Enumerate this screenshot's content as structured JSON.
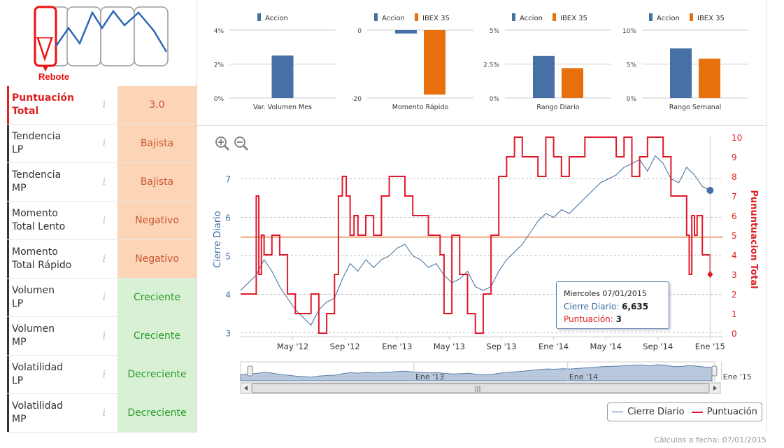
{
  "logo": {
    "caption": "Rebote"
  },
  "scores": [
    {
      "label1": "Puntuación",
      "label2": "Total",
      "info": "i",
      "value": "3.0",
      "tone": "orange",
      "main": true
    },
    {
      "label1": "Tendencia",
      "label2": "LP",
      "info": "i",
      "value": "Bajista",
      "tone": "orange"
    },
    {
      "label1": "Tendencia",
      "label2": "MP",
      "info": "i",
      "value": "Bajista",
      "tone": "orange"
    },
    {
      "label1": "Momento",
      "label2": "Total Lento",
      "info": "i",
      "value": "Negativo",
      "tone": "orange"
    },
    {
      "label1": "Momento",
      "label2": "Total Rápido",
      "info": "i",
      "value": "Negativo",
      "tone": "orange"
    },
    {
      "label1": "Volumen",
      "label2": "LP",
      "info": "i",
      "value": "Creciente",
      "tone": "green"
    },
    {
      "label1": "Volumen",
      "label2": "MP",
      "info": "i",
      "value": "Creciente",
      "tone": "green"
    },
    {
      "label1": "Volatilidad",
      "label2": "LP",
      "info": "i",
      "value": "Decreciente",
      "tone": "green"
    },
    {
      "label1": "Volatilidad",
      "label2": "MP",
      "info": "i",
      "value": "Decreciente",
      "tone": "green"
    }
  ],
  "colors": {
    "accion": "#4670a6",
    "ibex": "#e8700c",
    "puntuacion": "#e0192a",
    "cierre": "#3f6c9e"
  },
  "chart_data": [
    {
      "type": "bar",
      "title": "Var. Volumen Mes",
      "categories": [
        "Var. Volumen Mes"
      ],
      "series": [
        {
          "name": "Accion",
          "values": [
            2.5
          ]
        }
      ],
      "ylim": [
        0,
        4
      ],
      "ticks": [
        "0%",
        "2%",
        "4%"
      ]
    },
    {
      "type": "bar",
      "title": "Momento Rápido",
      "categories": [
        "Momento Rápido"
      ],
      "series": [
        {
          "name": "Accion",
          "values": [
            -1
          ]
        },
        {
          "name": "IBEX 35",
          "values": [
            -19
          ]
        }
      ],
      "ylim": [
        -20,
        0
      ],
      "ticks": [
        "-20",
        "0"
      ]
    },
    {
      "type": "bar",
      "title": "Rango Diario",
      "categories": [
        "Rango Diario"
      ],
      "series": [
        {
          "name": "Accion",
          "values": [
            3.1
          ]
        },
        {
          "name": "IBEX 35",
          "values": [
            2.2
          ]
        }
      ],
      "ylim": [
        0,
        5
      ],
      "ticks": [
        "0%",
        "2.5%",
        "5%"
      ]
    },
    {
      "type": "bar",
      "title": "Rango Semanal",
      "categories": [
        "Rango Semanal"
      ],
      "series": [
        {
          "name": "Accion",
          "values": [
            7.3
          ]
        },
        {
          "name": "IBEX 35",
          "values": [
            5.8
          ]
        }
      ],
      "ylim": [
        0,
        10
      ],
      "ticks": [
        "0%",
        "5%",
        "10%"
      ]
    },
    {
      "type": "line",
      "ylabel_left": "Cierre Diario",
      "ylabel_right": "Pununtuacion Total",
      "ylim_left": [
        2.9,
        8.1
      ],
      "ylim_right": [
        0,
        10
      ],
      "yticks_left": [
        "3",
        "4",
        "5",
        "6",
        "7"
      ],
      "yticks_right": [
        "0",
        "1",
        "2",
        "3",
        "4",
        "5",
        "6",
        "7",
        "8",
        "9",
        "10"
      ],
      "xticks": [
        "May '12",
        "Sep '12",
        "Ene '13",
        "May '13",
        "Sep '13",
        "Ene '14",
        "May '14",
        "Sep '14",
        "Ene '15"
      ],
      "xrange": [
        0,
        37
      ],
      "xtick_positions": [
        4,
        8,
        12,
        16,
        20,
        24,
        28,
        32,
        36
      ],
      "reference_line_right": 4.9,
      "series": [
        {
          "name": "Cierre Diario",
          "axis": "left",
          "x": [
            0,
            0.6,
            1.2,
            1.8,
            2.4,
            3,
            3.6,
            4.2,
            4.8,
            5.4,
            6,
            6.6,
            7.2,
            7.8,
            8.4,
            9,
            9.6,
            10.2,
            10.8,
            11.4,
            12,
            12.6,
            13.2,
            13.8,
            14.4,
            15,
            15.6,
            16.2,
            16.8,
            17.4,
            18,
            18.6,
            19.2,
            19.8,
            20.4,
            21,
            21.6,
            22.2,
            22.8,
            23.4,
            24,
            24.6,
            25.2,
            25.8,
            26.4,
            27,
            27.6,
            28.2,
            28.8,
            29.4,
            30,
            30.6,
            31.2,
            31.8,
            32.4,
            33,
            33.6,
            34.2,
            34.8,
            35.4,
            36
          ],
          "values": [
            4.1,
            4.3,
            4.5,
            4.9,
            4.6,
            4.2,
            3.9,
            3.6,
            3.4,
            3.2,
            3.6,
            3.8,
            3.9,
            4.4,
            4.8,
            4.6,
            4.9,
            4.7,
            4.9,
            5.0,
            5.2,
            5.3,
            5.0,
            4.9,
            4.7,
            4.8,
            4.5,
            4.3,
            4.4,
            4.6,
            4.2,
            4.1,
            4.2,
            4.6,
            4.9,
            5.1,
            5.3,
            5.6,
            5.9,
            6.1,
            6.0,
            6.2,
            6.1,
            6.3,
            6.5,
            6.7,
            6.9,
            7.0,
            7.1,
            7.3,
            7.4,
            7.5,
            7.2,
            7.6,
            7.4,
            7.0,
            6.9,
            7.3,
            7.1,
            6.8,
            6.7
          ]
        },
        {
          "name": "Puntuación",
          "axis": "right",
          "x": [
            0,
            1,
            1.2,
            1.4,
            1.6,
            1.8,
            2,
            2.4,
            3,
            3.6,
            4.2,
            4.8,
            5.4,
            6,
            6.6,
            7.2,
            7.5,
            7.8,
            8.1,
            8.4,
            8.7,
            9,
            9.6,
            10.2,
            10.8,
            11.4,
            12,
            12.6,
            13.2,
            13.8,
            14.4,
            15,
            15.3,
            15.6,
            16.2,
            16.8,
            17.4,
            18,
            18.6,
            19.2,
            19.8,
            20.4,
            21,
            21.6,
            22.2,
            22.8,
            23.4,
            24,
            24.6,
            25.2,
            25.8,
            26.4,
            27,
            27.6,
            28.2,
            28.8,
            29.4,
            30,
            30.6,
            31.2,
            31.8,
            32.4,
            33,
            33.6,
            34.2,
            34.4,
            34.6,
            34.8,
            35,
            35.4,
            36
          ],
          "values": [
            2,
            2,
            7,
            3,
            5,
            4,
            4,
            5,
            4,
            2,
            1,
            1,
            2,
            0,
            1,
            3,
            7,
            8,
            7,
            5,
            6,
            5,
            6,
            5,
            7,
            8,
            8,
            7,
            6,
            6,
            5,
            5,
            4,
            1,
            5,
            3,
            1,
            0,
            2,
            5,
            8,
            9,
            10,
            9,
            9,
            8,
            10,
            9,
            8,
            9,
            9,
            10,
            10,
            10,
            10,
            9,
            10,
            8,
            9,
            10,
            10,
            9,
            7,
            7,
            5,
            3,
            6,
            5,
            6,
            4,
            3
          ]
        }
      ],
      "tooltip": {
        "date": "Miercoles 07/01/2015",
        "cierre_label": "Cierre Diario:",
        "cierre_value": "6,635",
        "punt_label": "Puntuación:",
        "punt_value": "3"
      },
      "navigator": {
        "labels": [
          "Ene '13",
          "Ene '14",
          "Ene '15"
        ]
      },
      "legend": [
        "Cierre Diario",
        "Puntuación"
      ]
    }
  ],
  "footer": "Cálculos a fecha: 07/01/2015"
}
